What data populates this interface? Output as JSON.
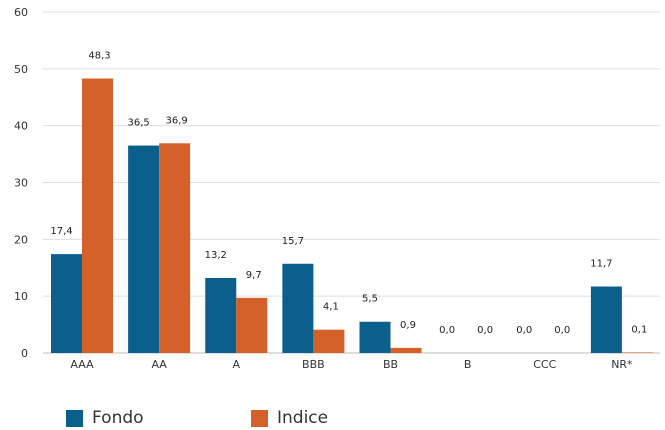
{
  "chart_data": {
    "type": "bar",
    "categories": [
      "AAA",
      "AA",
      "A",
      "BBB",
      "BB",
      "B",
      "CCC",
      "NR*"
    ],
    "series": [
      {
        "name": "Fondo",
        "color": "#0a5f8c",
        "values": [
          17.4,
          36.5,
          13.2,
          15.7,
          5.5,
          0.0,
          0.0,
          11.7
        ],
        "labels": [
          "17,4",
          "36,5",
          "13,2",
          "15,7",
          "5,5",
          "0,0",
          "0,0",
          "11,7"
        ]
      },
      {
        "name": "Indice",
        "color": "#d4612a",
        "values": [
          48.3,
          36.9,
          9.7,
          4.1,
          0.9,
          0.0,
          0.0,
          0.1
        ],
        "labels": [
          "48,3",
          "36,9",
          "9,7",
          "4,1",
          "0,9",
          "0,0",
          "0,0",
          "0,1"
        ]
      }
    ],
    "yticks": [
      "0",
      "10",
      "20",
      "30",
      "40",
      "50",
      "60"
    ],
    "ylim": [
      0,
      60
    ],
    "grid": true,
    "legend_position": "bottom-left"
  }
}
